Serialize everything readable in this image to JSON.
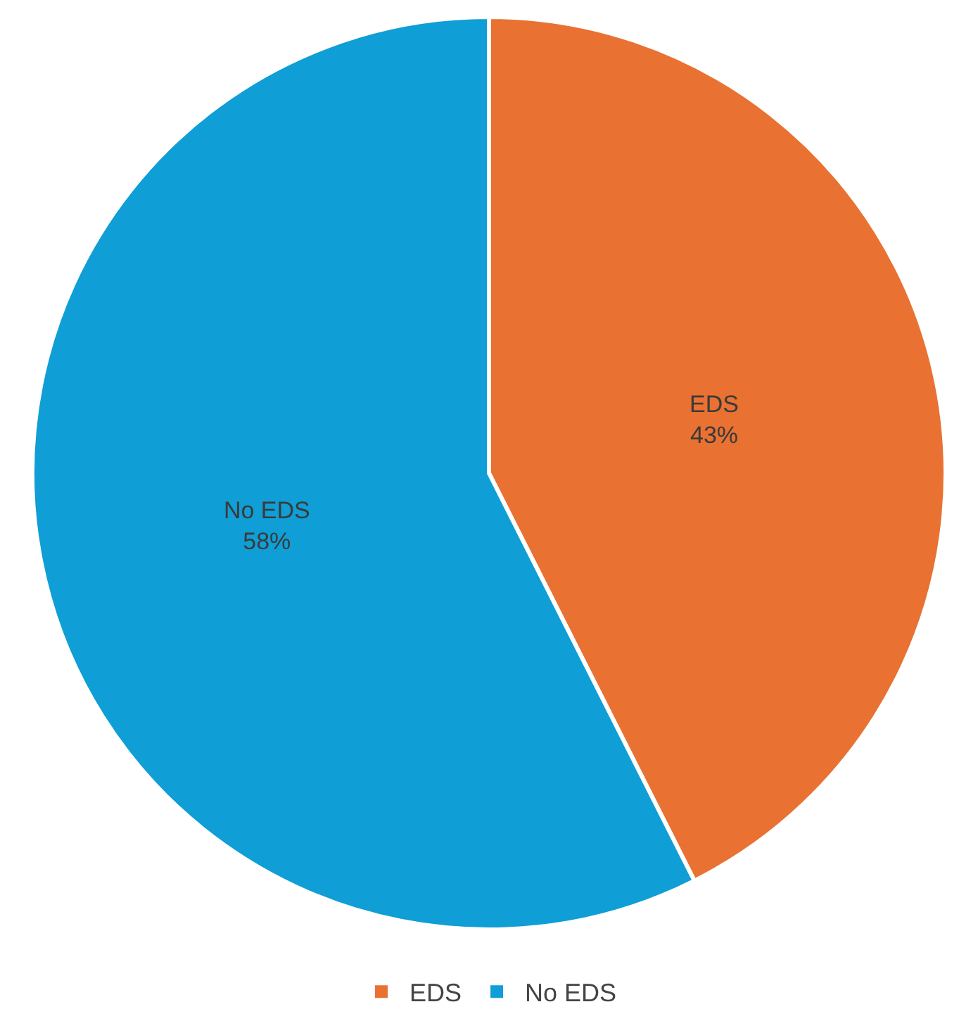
{
  "chart_data": {
    "type": "pie",
    "categories": [
      "EDS",
      "No EDS"
    ],
    "values": [
      43,
      58
    ],
    "value_labels": [
      "43%",
      "58%"
    ],
    "colors": [
      "#e97132",
      "#0f9ed5"
    ],
    "legend": "bottom"
  }
}
